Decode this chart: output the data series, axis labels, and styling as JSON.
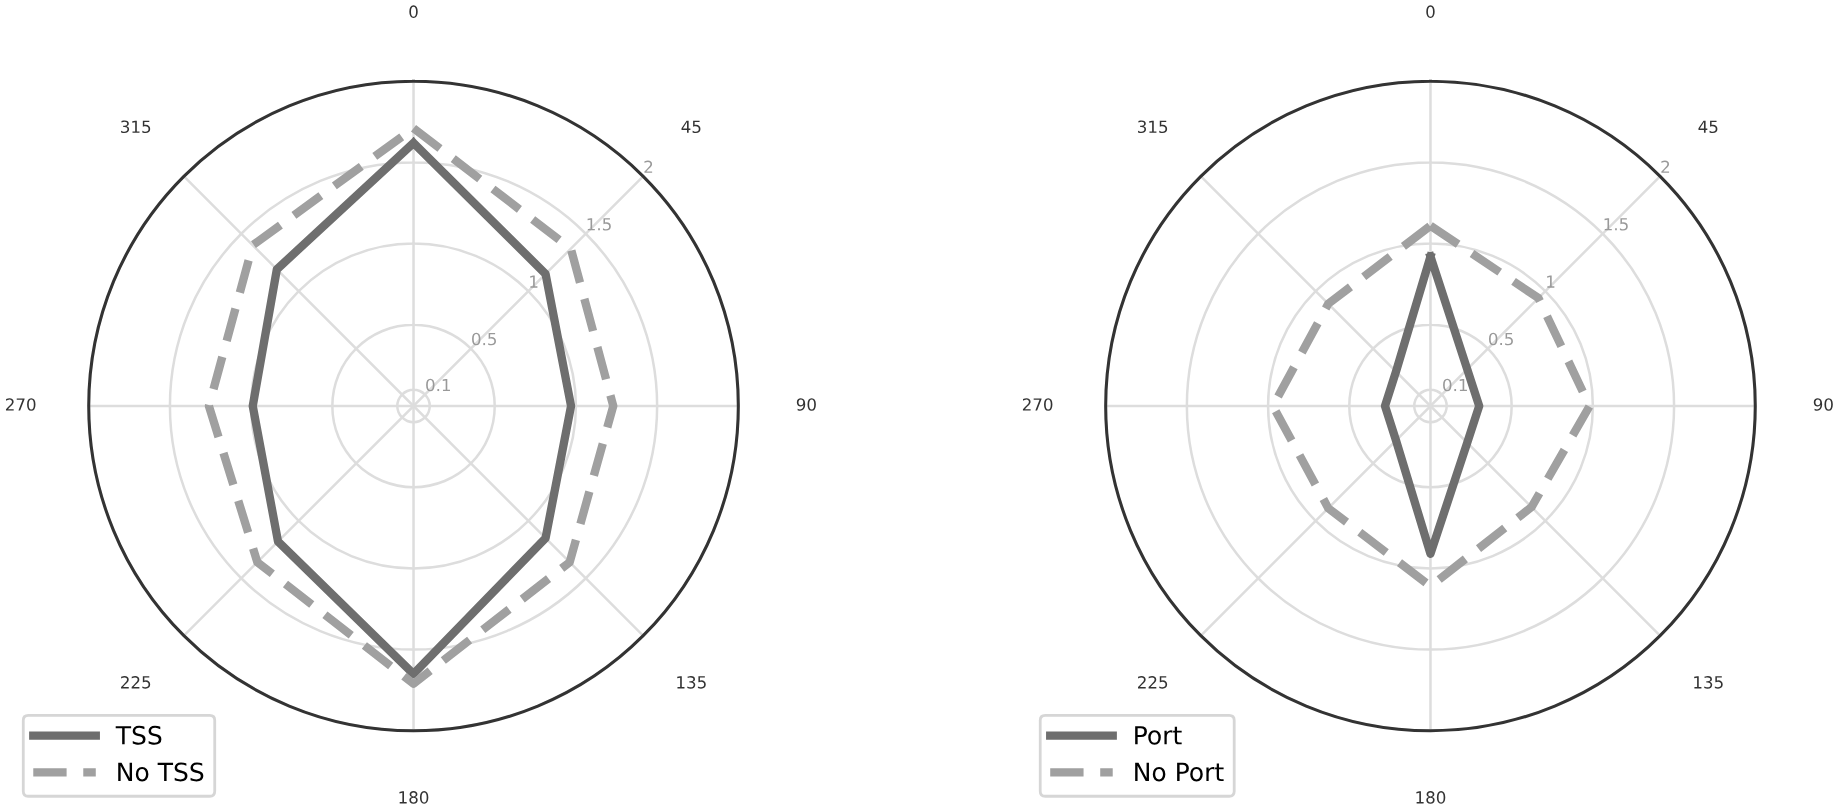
{
  "chart_data": [
    {
      "type": "radar",
      "categories": [
        "0",
        "45",
        "90",
        "135",
        "180",
        "225",
        "270",
        "315"
      ],
      "ylim": [
        0,
        2
      ],
      "yticks": [
        0.1,
        0.5,
        1,
        1.5,
        2
      ],
      "grid": true,
      "legend": "bottom left",
      "series": [
        {
          "name": "TSS",
          "color": "#6e6e6e",
          "line_style": "solid",
          "values": [
            1.62,
            1.15,
            0.97,
            1.15,
            1.65,
            1.18,
            0.99,
            1.19
          ]
        },
        {
          "name": "No TSS",
          "color": "#a0a0a0",
          "line_style": "dashed",
          "values": [
            1.71,
            1.37,
            1.23,
            1.36,
            1.71,
            1.36,
            1.26,
            1.4
          ]
        }
      ]
    },
    {
      "type": "radar",
      "categories": [
        "0",
        "45",
        "90",
        "135",
        "180",
        "225",
        "270",
        "315"
      ],
      "ylim": [
        0,
        2
      ],
      "yticks": [
        0.1,
        0.5,
        1,
        1.5,
        2
      ],
      "grid": true,
      "legend": "bottom left",
      "series": [
        {
          "name": "Port",
          "color": "#6e6e6e",
          "line_style": "solid",
          "values": [
            0.92,
            0.32,
            0.3,
            0.32,
            0.91,
            0.3,
            0.28,
            0.3
          ]
        },
        {
          "name": "No Port",
          "color": "#a0a0a0",
          "line_style": "dashed",
          "values": [
            1.11,
            0.94,
            0.98,
            0.88,
            1.11,
            0.89,
            0.97,
            0.89
          ]
        }
      ]
    }
  ]
}
